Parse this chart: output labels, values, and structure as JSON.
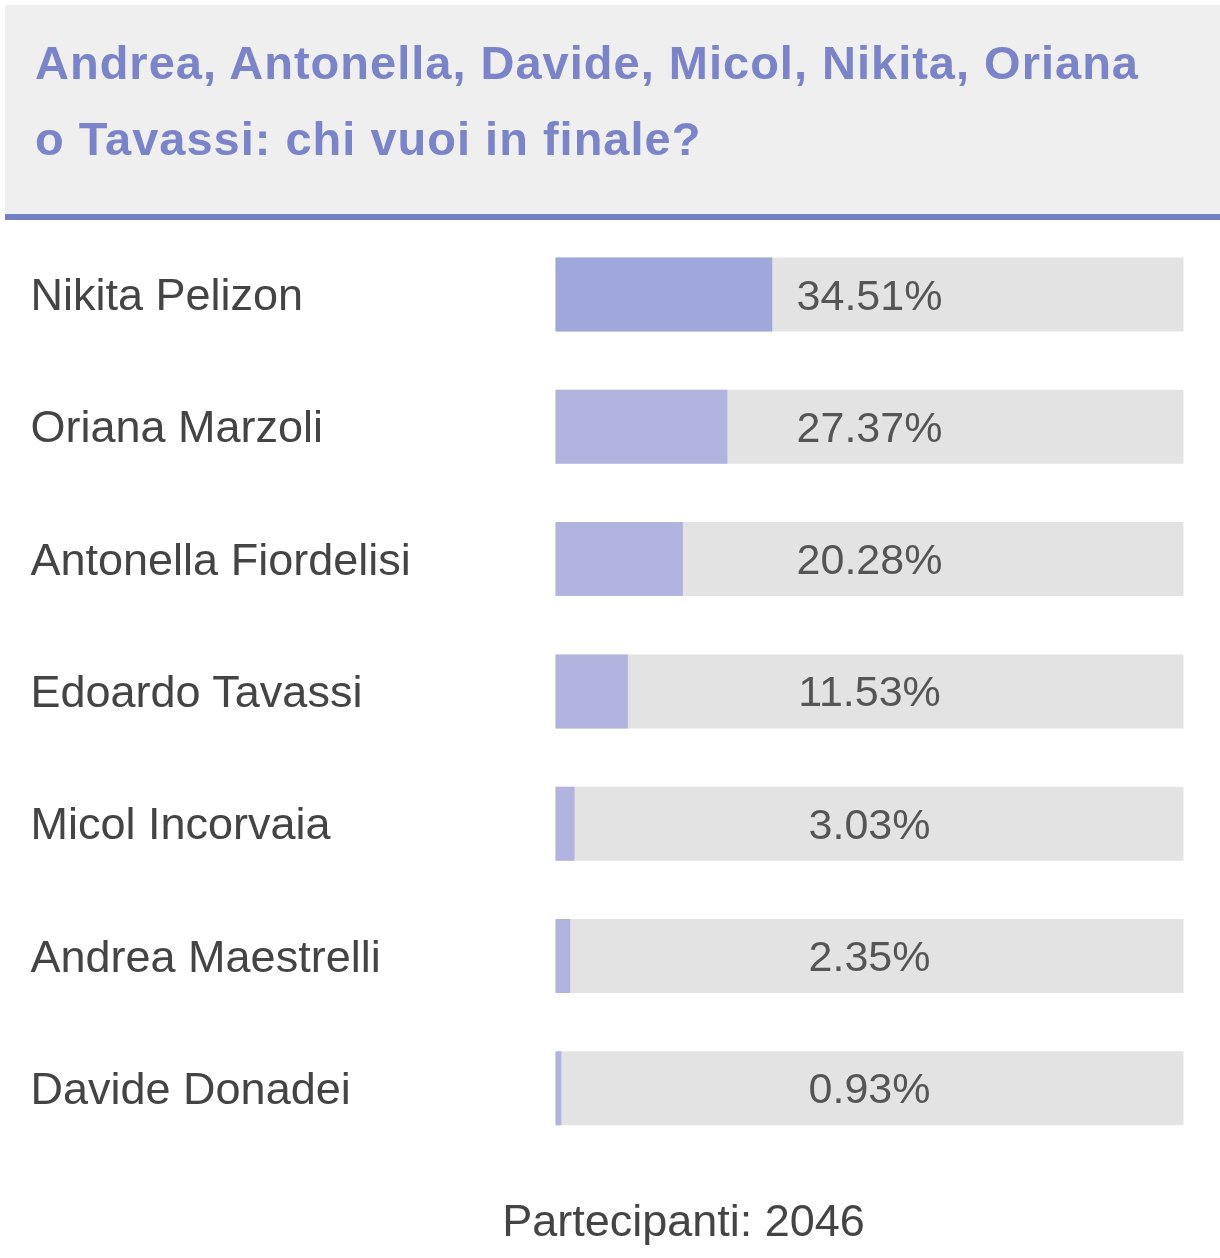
{
  "chart_data": {
    "type": "bar",
    "orientation": "horizontal",
    "title": "Andrea, Antonella, Davide, Micol, Nikita, Oriana o Tavassi: chi vuoi in finale?",
    "categories": [
      "Nikita Pelizon",
      "Oriana Marzoli",
      "Antonella Fiordelisi",
      "Edoardo Tavassi",
      "Micol Incorvaia",
      "Andrea Maestrelli",
      "Davide Donadei"
    ],
    "values": [
      34.51,
      27.37,
      20.28,
      11.53,
      3.03,
      2.35,
      0.93
    ],
    "colors": [
      "#a0a7da",
      "#b0b4df",
      "#b0b4df",
      "#b0b4df",
      "#b0b4df",
      "#b0b4df",
      "#b0b4df"
    ],
    "value_labels": [
      "34.51%",
      "27.37%",
      "20.28%",
      "11.53%",
      "3.03%",
      "2.35%",
      "0.93%"
    ],
    "annotations": [
      "Partecipanti: 2046"
    ]
  }
}
